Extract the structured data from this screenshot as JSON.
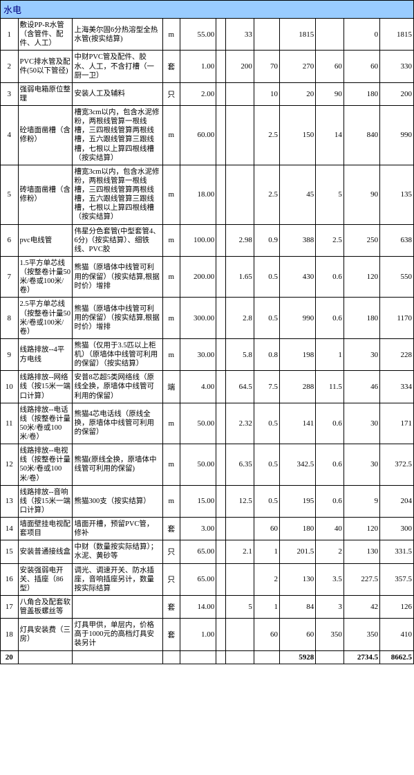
{
  "section_title": "水电",
  "rows": [
    {
      "idx": "1",
      "name": "敷设PP-R水管（含管件、配件、人工）",
      "desc": "上海美尔固6分热溶型全热水管(按实结算)",
      "unit": "m",
      "qty": "55.00",
      "p1": "33",
      "p2": "",
      "p3": "1815",
      "p4": "",
      "p5": "0",
      "p6": "1815"
    },
    {
      "idx": "2",
      "name": "PVC排水管及配件(50以下管径)",
      "desc": "中财PVC管及配件、胶水、人工，不含打槽（一厨一卫）",
      "unit": "套",
      "qty": "1.00",
      "p1": "200",
      "p2": "70",
      "p3": "270",
      "p4": "60",
      "p5": "60",
      "p6": "330"
    },
    {
      "idx": "3",
      "name": "强弱电箱原位整理",
      "desc": "安装人工及辅料",
      "unit": "只",
      "qty": "2.00",
      "p1": "",
      "p2": "10",
      "p3": "20",
      "p4": "90",
      "p5": "180",
      "p6": "200"
    },
    {
      "idx": "4",
      "name": "砼墙面凿槽（含修粉）",
      "desc": "槽宽3cm以内，包含水泥修粉，两根线管算一根线槽，三四根线管算两根线槽，五六跟线管算三跟线槽，七根以上算四根线槽（按实结算）",
      "unit": "m",
      "qty": "60.00",
      "p1": "",
      "p2": "2.5",
      "p3": "150",
      "p4": "14",
      "p5": "840",
      "p6": "990"
    },
    {
      "idx": "5",
      "name": "砖墙面凿槽（含修粉）",
      "desc": "槽宽3cm以内，包含水泥修粉，两根线管算一根线槽，三四根线管算两根线槽，五六跟线管算三跟线槽，七根以上算四根线槽（按实结算）",
      "unit": "m",
      "qty": "18.00",
      "p1": "",
      "p2": "2.5",
      "p3": "45",
      "p4": "5",
      "p5": "90",
      "p6": "135"
    },
    {
      "idx": "6",
      "name": "pvc电线管",
      "desc": "伟星分色套管(中型套管4、6分)（按实结算）、细铁线、PVC胶",
      "unit": "m",
      "qty": "100.00",
      "p1": "2.98",
      "p2": "0.9",
      "p3": "388",
      "p4": "2.5",
      "p5": "250",
      "p6": "638"
    },
    {
      "idx": "7",
      "name": "1.5平方单芯线（按整卷计量50米/卷或100米/卷）",
      "desc": "熊猫（原墙体中线管可利用的保留）（按实结算,根据时价）增排",
      "unit": "m",
      "qty": "200.00",
      "p1": "1.65",
      "p2": "0.5",
      "p3": "430",
      "p4": "0.6",
      "p5": "120",
      "p6": "550"
    },
    {
      "idx": "8",
      "name": "2.5平方单芯线（按整卷计量50米/卷或100米/卷）",
      "desc": "熊猫（原墙体中线管可利用的保留）（按实结算,根据时价）增排",
      "unit": "m",
      "qty": "300.00",
      "p1": "2.8",
      "p2": "0.5",
      "p3": "990",
      "p4": "0.6",
      "p5": "180",
      "p6": "1170"
    },
    {
      "idx": "9",
      "name": "线路排放--4平方电线",
      "desc": "熊猫（仅用于3.5匹以上柜机）（原墙体中线管可利用的保留）（按实结算）",
      "unit": "m",
      "qty": "30.00",
      "p1": "5.8",
      "p2": "0.8",
      "p3": "198",
      "p4": "1",
      "p5": "30",
      "p6": "228"
    },
    {
      "idx": "10",
      "name": "线路排放--网络线（按15米一端口计算）",
      "desc": "安普8芯超5类网络线（原线全换，原墙体中线管可利用的保留）",
      "unit": "端",
      "qty": "4.00",
      "p1": "64.5",
      "p2": "7.5",
      "p3": "288",
      "p4": "11.5",
      "p5": "46",
      "p6": "334"
    },
    {
      "idx": "11",
      "name": "线路排放--电话线（按整卷计量50米/卷或100米/卷）",
      "desc": "熊猫4芯电话线（原线全换，原墙体中线管可利用的保留）",
      "unit": "m",
      "qty": "50.00",
      "p1": "2.32",
      "p2": "0.5",
      "p3": "141",
      "p4": "0.6",
      "p5": "30",
      "p6": "171"
    },
    {
      "idx": "12",
      "name": "线路排放--电视线（按整卷计量50米/卷或100米/卷）",
      "desc": "熊猫(原线全换，原墙体中线管可利用的保留)",
      "unit": "m",
      "qty": "50.00",
      "p1": "6.35",
      "p2": "0.5",
      "p3": "342.5",
      "p4": "0.6",
      "p5": "30",
      "p6": "372.5"
    },
    {
      "idx": "13",
      "name": "线路排放--音响线（按15米一端口计算）",
      "desc": "熊猫300支（按实结算）",
      "unit": "m",
      "qty": "15.00",
      "p1": "12.5",
      "p2": "0.5",
      "p3": "195",
      "p4": "0.6",
      "p5": "9",
      "p6": "204"
    },
    {
      "idx": "14",
      "name": "墙面壁挂电视配套项目",
      "desc": "墙面开槽，预留PVC管，修补",
      "unit": "套",
      "qty": "3.00",
      "p1": "",
      "p2": "60",
      "p3": "180",
      "p4": "40",
      "p5": "120",
      "p6": "300"
    },
    {
      "idx": "15",
      "name": "安装普通接线盒",
      "desc": "中财（数量按实际结算）；水泥、黄砂等",
      "unit": "只",
      "qty": "65.00",
      "p1": "2.1",
      "p2": "1",
      "p3": "201.5",
      "p4": "2",
      "p5": "130",
      "p6": "331.5"
    },
    {
      "idx": "16",
      "name": "安装强弱电开关、插座（86型）",
      "desc": "调光、调速开关、防水插座，音响插座另计，数量按实际结算",
      "unit": "只",
      "qty": "65.00",
      "p1": "",
      "p2": "2",
      "p3": "130",
      "p4": "3.5",
      "p5": "227.5",
      "p6": "357.5"
    },
    {
      "idx": "17",
      "name": "八角合及配套软管盖板螺丝等",
      "desc": "",
      "unit": "套",
      "qty": "14.00",
      "p1": "5",
      "p2": "1",
      "p3": "84",
      "p4": "3",
      "p5": "42",
      "p6": "126"
    },
    {
      "idx": "18",
      "name": "灯具安装费（三房）",
      "desc": "灯具甲供，单层内，价格高于1000元的高档灯具安装另计",
      "unit": "套",
      "qty": "1.00",
      "p1": "",
      "p2": "60",
      "p3": "60",
      "p4": "350",
      "p5": "350",
      "p6": "410"
    }
  ],
  "total": {
    "idx": "20",
    "p3": "5928",
    "p5": "2734.5",
    "p6": "8662.5"
  }
}
